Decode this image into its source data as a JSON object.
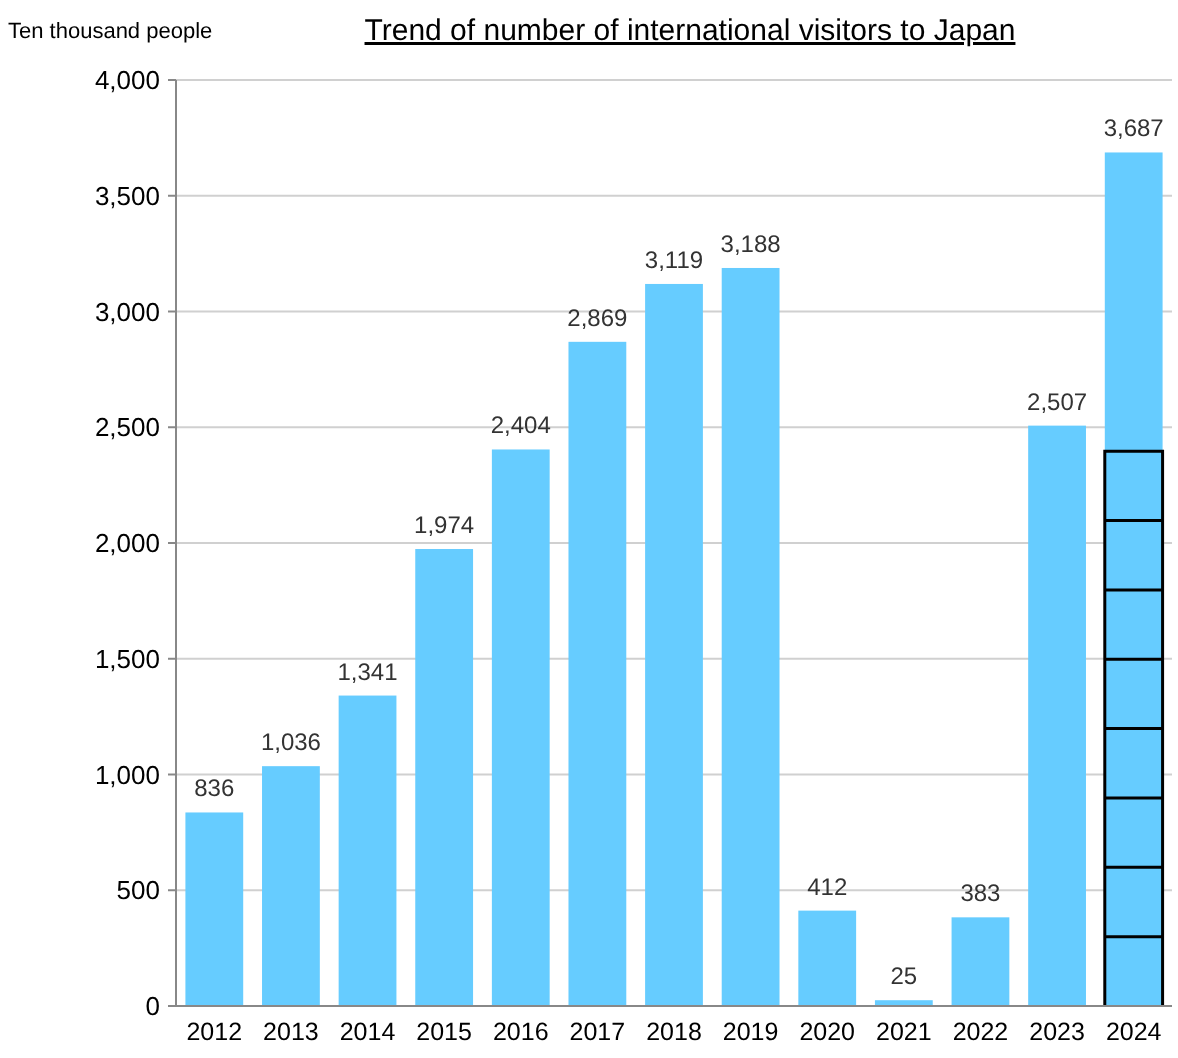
{
  "chart_data": {
    "type": "bar",
    "title": "Trend of number of international visitors to Japan",
    "ylabel": "Ten thousand people",
    "categories": [
      "2012",
      "2013",
      "2014",
      "2015",
      "2016",
      "2017",
      "2018",
      "2019",
      "2020",
      "2021",
      "2022",
      "2023",
      "2024"
    ],
    "values": [
      836,
      1036,
      1341,
      1974,
      2404,
      2869,
      3119,
      3188,
      412,
      25,
      383,
      2507,
      3687
    ],
    "value_labels": [
      "836",
      "1,036",
      "1,341",
      "1,974",
      "2,404",
      "2,869",
      "3,119",
      "3,188",
      "412",
      "25",
      "383",
      "2,507",
      "3,687"
    ],
    "color": "#66ccff",
    "ylim": [
      0,
      4000
    ],
    "yticks": [
      0,
      {
        "value": 500,
        "label": "500"
      },
      {
        "value": 1000,
        "label": "1,000"
      },
      {
        "value": 1500,
        "label": "1,500"
      },
      {
        "value": 2000,
        "label": "2,000"
      },
      {
        "value": 2500,
        "label": "2,500"
      },
      {
        "value": 3000,
        "label": "3,000"
      },
      {
        "value": 3500,
        "label": "3,500"
      },
      {
        "value": 4000,
        "label": "4,000"
      }
    ],
    "grid": "y"
  }
}
